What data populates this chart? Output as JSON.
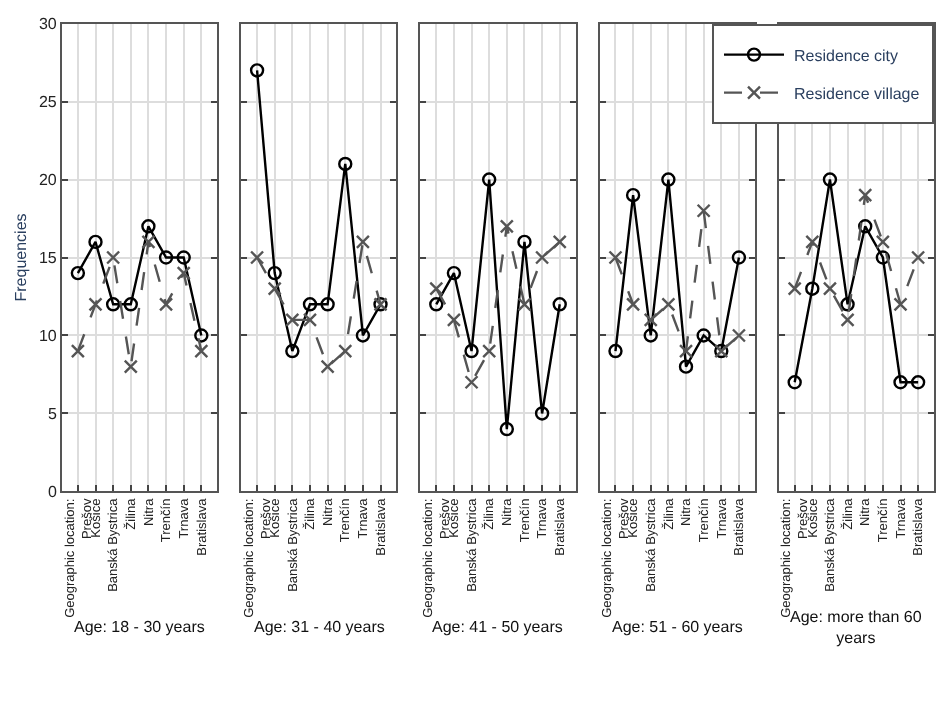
{
  "chart_data": [
    {
      "type": "line",
      "title": "Age: 18 - 30 years",
      "ylabel": "Frequencies",
      "legend": "top right",
      "categories": [
        "Geographic location: Prešov",
        "Košice",
        "Banská Bystrica",
        "Žilina",
        "Nitra",
        "Trenčín",
        "Trnava",
        "Bratislava"
      ],
      "ylim": [
        0,
        30
      ],
      "yticks": [
        0,
        5,
        10,
        15,
        20,
        25,
        30
      ],
      "grid": true,
      "series": [
        {
          "name": "Residence city",
          "color": "#000000",
          "marker": "circle",
          "line_style": "solid",
          "values": [
            14,
            16,
            12,
            12,
            17,
            15,
            15,
            10
          ]
        },
        {
          "name": "Residence village",
          "color": "#555555",
          "marker": "cross",
          "line_style": "dashed",
          "values": [
            9,
            12,
            15,
            8,
            16,
            12,
            14,
            9
          ]
        }
      ]
    },
    {
      "type": "line",
      "title": "Age: 31 - 40 years",
      "categories": [
        "Geographic location: Prešov",
        "Košice",
        "Banská Bystrica",
        "Žilina",
        "Nitra",
        "Trenčín",
        "Trnava",
        "Bratislava"
      ],
      "ylim": [
        0,
        30
      ],
      "yticks": [
        0,
        5,
        10,
        15,
        20,
        25,
        30
      ],
      "grid": true,
      "tick_labels": "x",
      "series": [
        {
          "color": "#000000",
          "marker": "circle",
          "line_style": "solid",
          "values": [
            27,
            14,
            9,
            12,
            12,
            21,
            10,
            12
          ]
        },
        {
          "color": "#555555",
          "marker": "cross",
          "line_style": "dashed",
          "values": [
            15,
            13,
            11,
            11,
            8,
            9,
            16,
            12
          ]
        }
      ]
    },
    {
      "type": "line",
      "title": "Age: 41 - 50 years",
      "categories": [
        "Geographic location: Prešov",
        "Košice",
        "Banská Bystrica",
        "Žilina",
        "Nitra",
        "Trenčín",
        "Trnava",
        "Bratislava"
      ],
      "ylim": [
        0,
        30
      ],
      "yticks": [
        0,
        5,
        10,
        15,
        20,
        25,
        30
      ],
      "grid": true,
      "tick_labels": "x",
      "series": [
        {
          "color": "#000000",
          "marker": "circle",
          "line_style": "solid",
          "values": [
            12,
            14,
            9,
            20,
            4,
            16,
            5,
            12
          ]
        },
        {
          "color": "#555555",
          "marker": "cross",
          "line_style": "dashed",
          "values": [
            13,
            11,
            7,
            9,
            17,
            12,
            15,
            16
          ]
        }
      ]
    },
    {
      "type": "line",
      "title": "Age: 51 - 60 years",
      "categories": [
        "Geographic location: Prešov",
        "Košice",
        "Banská Bystrica",
        "Žilina",
        "Nitra",
        "Trenčín",
        "Trnava",
        "Bratislava"
      ],
      "ylim": [
        0,
        30
      ],
      "yticks": [
        0,
        5,
        10,
        15,
        20,
        25,
        30
      ],
      "grid": true,
      "tick_labels": "x",
      "series": [
        {
          "color": "#000000",
          "marker": "circle",
          "line_style": "solid",
          "values": [
            9,
            19,
            10,
            20,
            8,
            10,
            9,
            15
          ]
        },
        {
          "color": "#555555",
          "marker": "cross",
          "line_style": "dashed",
          "values": [
            15,
            12,
            11,
            12,
            9,
            18,
            9,
            10
          ]
        }
      ]
    },
    {
      "type": "line",
      "title": "Age: more than 60 years",
      "categories": [
        "Geographic location: Prešov",
        "Košice",
        "Banská Bystrica",
        "Žilina",
        "Nitra",
        "Trenčín",
        "Trnava",
        "Bratislava"
      ],
      "ylim": [
        0,
        30
      ],
      "yticks": [
        0,
        5,
        10,
        15,
        20,
        25,
        30
      ],
      "grid": true,
      "tick_labels": "x",
      "series": [
        {
          "color": "#000000",
          "marker": "circle",
          "line_style": "solid",
          "values": [
            7,
            13,
            20,
            12,
            17,
            15,
            7,
            7
          ]
        },
        {
          "color": "#555555",
          "marker": "cross",
          "line_style": "dashed",
          "values": [
            13,
            16,
            13,
            11,
            19,
            16,
            12,
            15
          ]
        }
      ]
    }
  ]
}
